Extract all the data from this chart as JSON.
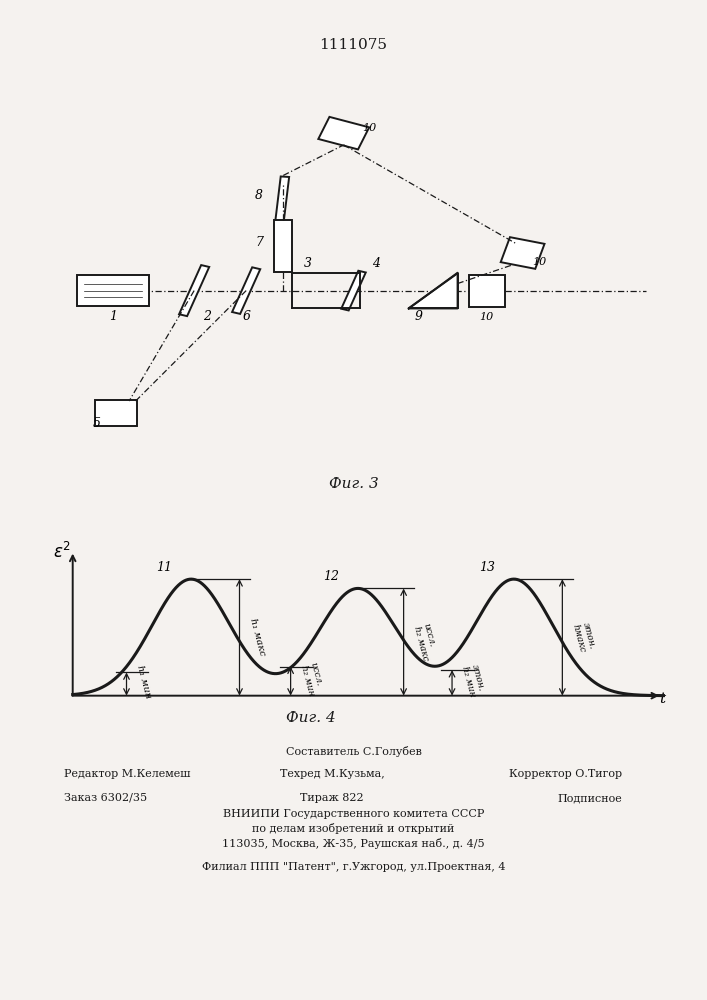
{
  "patent_number": "1111075",
  "background_color": "#f5f2ef",
  "line_color": "#1a1a1a",
  "fig3_label": "Фиг. 3",
  "fig4_label": "Фиг. 4",
  "footer_sestavitel": "Составитель С.Голубев",
  "footer_redaktor": "Редактор М.Келемеш",
  "footer_tehred": "Техред М.Кузьма,",
  "footer_korrektor": "Корректор О.Тигор",
  "footer_zakaz": "Заказ 6302/35",
  "footer_tirazh": "Тираж 822",
  "footer_podpisnoe": "Подписное",
  "footer_vniip1": "ВНИИПИ Государственного комитета СССР",
  "footer_vniip2": "по делам изобретений и открытий",
  "footer_addr": "113035, Москва, Ж-35, Раушская наб., д. 4/5",
  "footer_filial": "Филиал ППП \"Патент\", г.Ужгород, ул.Проектная, 4",
  "label_h1min": "h₁ мин",
  "label_h1max": "h₁ макс",
  "label_h2min_issl": "иссл.\nh₂ мин",
  "label_h2max_issl": "иссл.\nh₂ макс",
  "label_h2min_eton": "этон.\nh₂ мин",
  "label_h2max_eton": "этон.\nhмакс"
}
